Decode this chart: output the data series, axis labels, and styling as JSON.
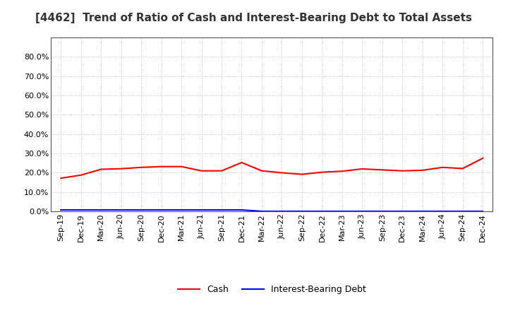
{
  "title": "[4462]  Trend of Ratio of Cash and Interest-Bearing Debt to Total Assets",
  "x_labels": [
    "Sep-19",
    "Dec-19",
    "Mar-20",
    "Jun-20",
    "Sep-20",
    "Dec-20",
    "Mar-21",
    "Jun-21",
    "Sep-21",
    "Dec-21",
    "Mar-22",
    "Jun-22",
    "Sep-22",
    "Dec-22",
    "Mar-23",
    "Jun-23",
    "Sep-23",
    "Dec-23",
    "Mar-24",
    "Jun-24",
    "Sep-24",
    "Dec-24"
  ],
  "cash": [
    0.172,
    0.188,
    0.218,
    0.221,
    0.228,
    0.232,
    0.232,
    0.21,
    0.21,
    0.253,
    0.21,
    0.2,
    0.192,
    0.203,
    0.208,
    0.22,
    0.215,
    0.21,
    0.213,
    0.228,
    0.222,
    0.275
  ],
  "interest_bearing_debt": [
    0.008,
    0.008,
    0.008,
    0.008,
    0.008,
    0.008,
    0.008,
    0.008,
    0.008,
    0.008,
    0.001,
    0.001,
    0.001,
    0.001,
    0.001,
    0.001,
    0.001,
    0.001,
    0.001,
    0.001,
    0.001,
    0.001
  ],
  "cash_color": "#FF0000",
  "debt_color": "#0000FF",
  "ylim": [
    0.0,
    0.9
  ],
  "yticks": [
    0.0,
    0.1,
    0.2,
    0.3,
    0.4,
    0.5,
    0.6,
    0.7,
    0.8
  ],
  "background_color": "#FFFFFF",
  "plot_bg_color": "#FFFFFF",
  "grid_color": "#BBBBBB",
  "title_fontsize": 11,
  "tick_fontsize": 8,
  "legend_cash": "Cash",
  "legend_debt": "Interest-Bearing Debt"
}
